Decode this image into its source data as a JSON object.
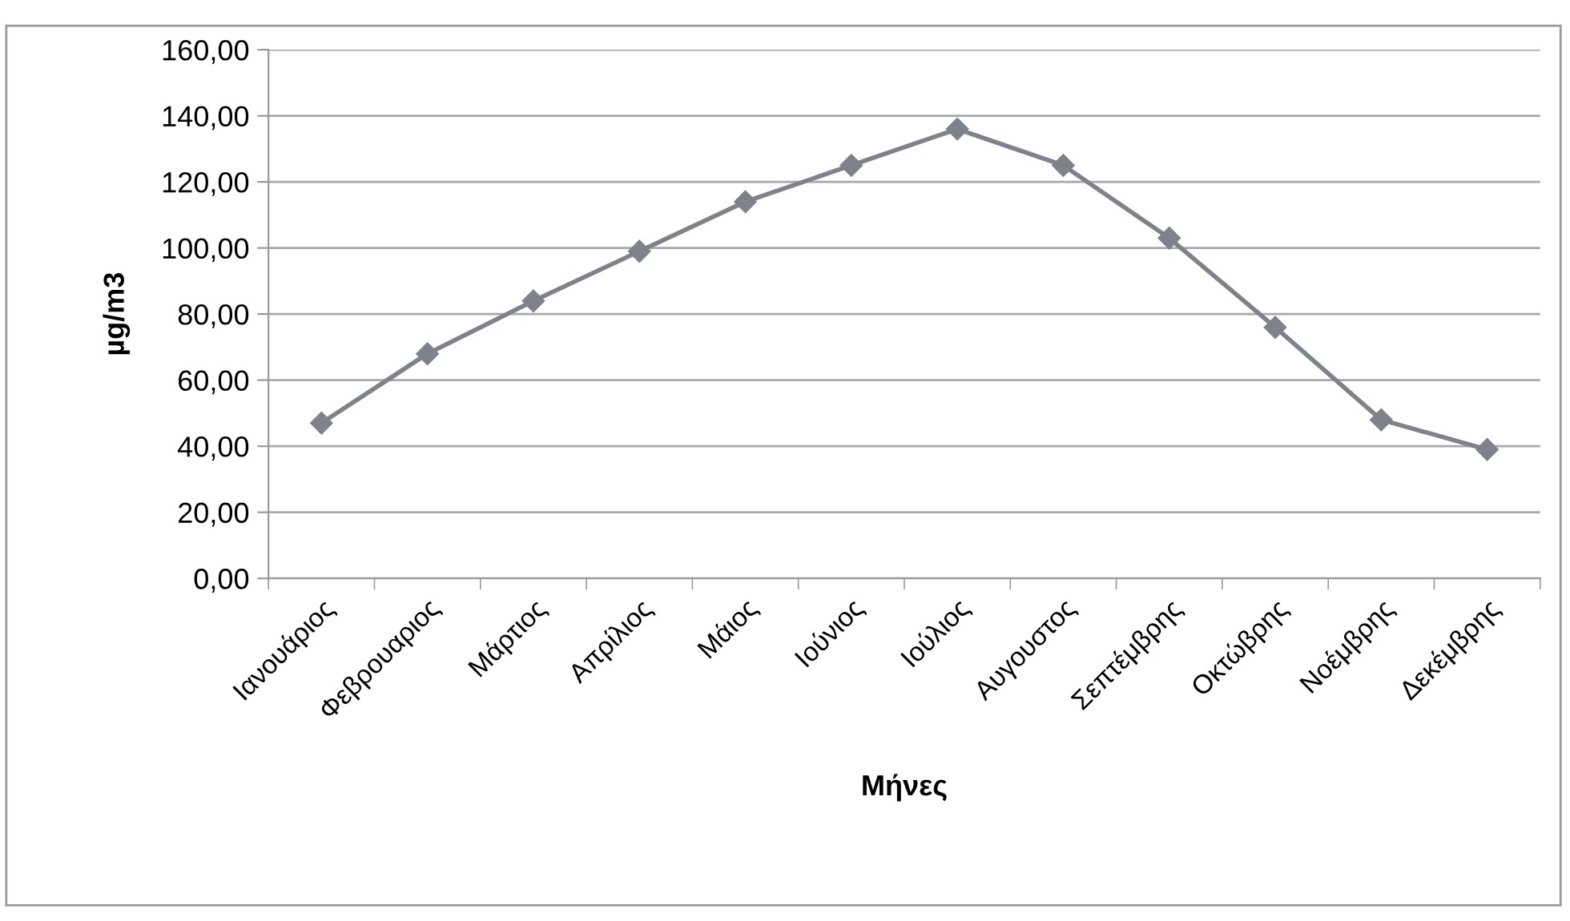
{
  "chart_data": {
    "type": "line",
    "xlabel": "Μήνες",
    "ylabel": "µg/m3",
    "categories": [
      "Ιανουάριος",
      "Φεβρουαριος",
      "Μάρτιος",
      "Απρίλιος",
      "Μάιος",
      "Ιούνιος",
      "Ιούλιος",
      "Αυγουστος",
      "Σεπτέμβρης",
      "Οκτώβρης",
      "Νοέμβρης",
      "Δεκέμβρης"
    ],
    "series": [
      {
        "color": "#7f8289",
        "values": [
          47,
          68,
          84,
          99,
          114,
          125,
          136,
          125,
          103,
          76,
          48,
          39
        ]
      }
    ],
    "ylim": [
      0,
      160
    ],
    "yticks": [
      {
        "value": 0,
        "label": "0,00"
      },
      {
        "value": 20,
        "label": "20,00"
      },
      {
        "value": 40,
        "label": "40,00"
      },
      {
        "value": 60,
        "label": "60,00"
      },
      {
        "value": 80,
        "label": "80,00"
      },
      {
        "value": 100,
        "label": "100,00"
      },
      {
        "value": 120,
        "label": "120,00"
      },
      {
        "value": 140,
        "label": "140,00"
      },
      {
        "value": 160,
        "label": "160,00"
      }
    ],
    "grid": "y",
    "marker": "diamond",
    "line_style": "solid"
  }
}
